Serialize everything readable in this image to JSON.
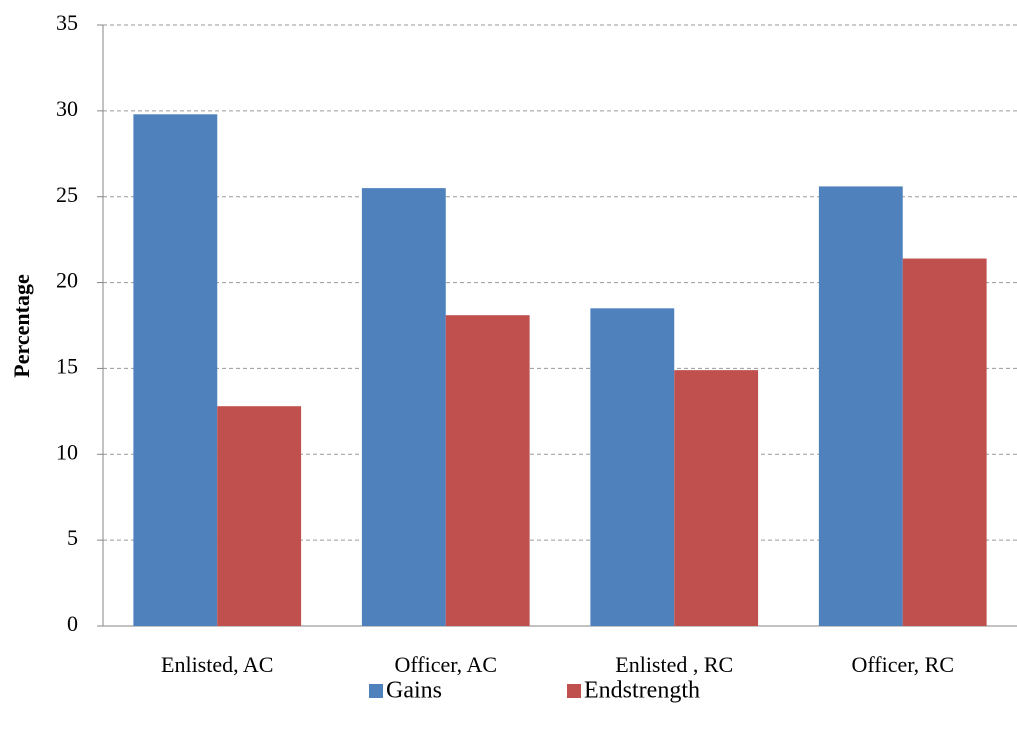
{
  "chart_data": {
    "type": "bar",
    "y_label": "Percentage",
    "categories": [
      "Enlisted, AC",
      "Officer, AC",
      "Enlisted , RC",
      "Officer, RC"
    ],
    "series": [
      {
        "name": "Gains",
        "color": "#4f81bd",
        "values": [
          29.8,
          25.5,
          18.5,
          25.6
        ]
      },
      {
        "name": "Endstrength",
        "color": "#c0504d",
        "values": [
          12.8,
          18.1,
          14.9,
          21.4
        ]
      }
    ],
    "ylim": [
      0,
      35
    ],
    "yticks": [
      0,
      5,
      10,
      15,
      20,
      25,
      30,
      35
    ],
    "grid": true,
    "legend": "bottom"
  }
}
